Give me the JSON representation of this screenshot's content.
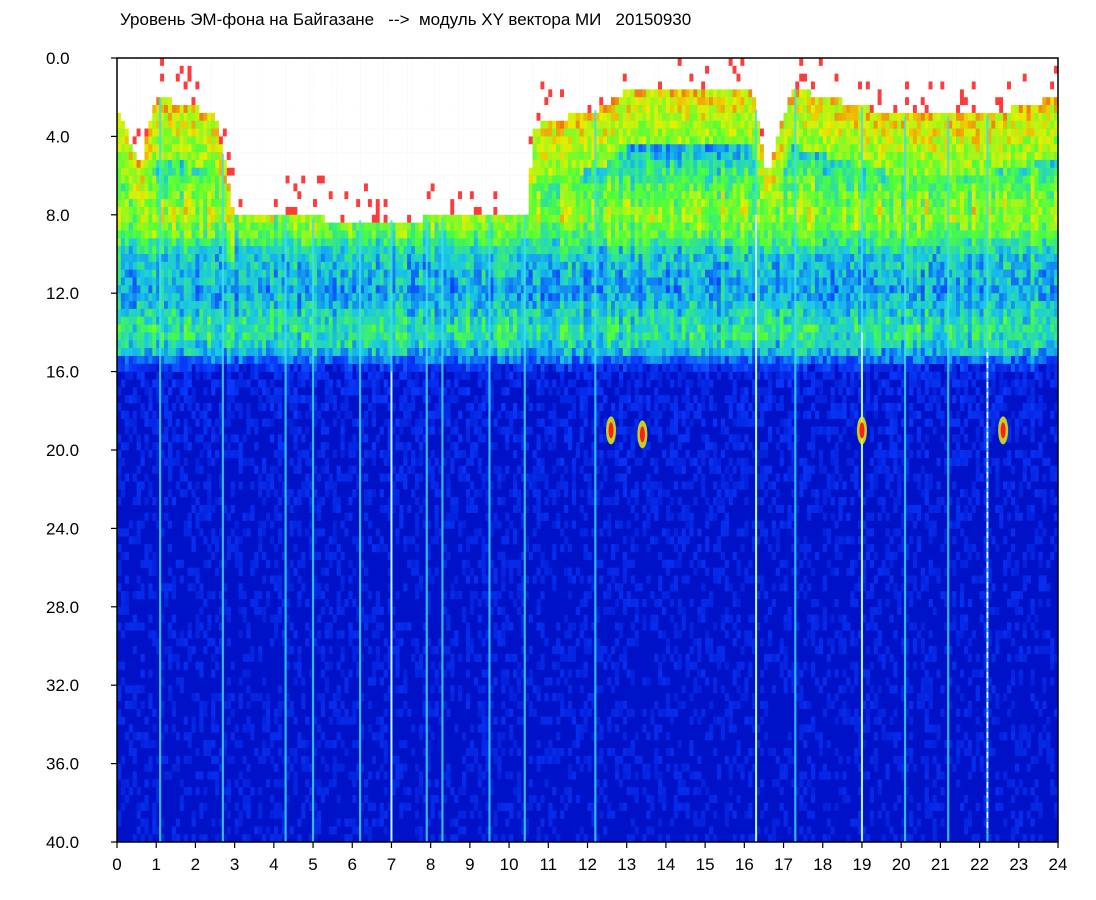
{
  "chart_data": {
    "type": "heatmap",
    "title": "Уровень ЭМ-фона на Байгазане   -->  модуль XY вектора МИ   20150930",
    "xlabel": "",
    "ylabel": "",
    "xlim": [
      0,
      24
    ],
    "ylim": [
      0,
      40
    ],
    "y_inverted": true,
    "x_ticks": [
      0,
      1,
      2,
      3,
      4,
      5,
      6,
      7,
      8,
      9,
      10,
      11,
      12,
      13,
      14,
      15,
      16,
      17,
      18,
      19,
      20,
      21,
      22,
      23,
      24
    ],
    "x_tick_labels": [
      "0",
      "1",
      "2",
      "3",
      "4",
      "5",
      "6",
      "7",
      "8",
      "9",
      "10",
      "11",
      "12",
      "13",
      "14",
      "15",
      "16",
      "17",
      "18",
      "19",
      "20",
      "21",
      "22",
      "23",
      "24"
    ],
    "y_ticks": [
      0,
      4,
      8,
      12,
      16,
      20,
      24,
      28,
      32,
      36,
      40
    ],
    "y_tick_labels": [
      "0.0",
      "4.0",
      "8.0",
      "12.0",
      "16.0",
      "20.0",
      "24.0",
      "28.0",
      "32.0",
      "36.0",
      "40.0"
    ],
    "grid": false,
    "legend": "none",
    "colormap": [
      "#0012c8",
      "#0a3cff",
      "#19c8e6",
      "#4cff3c",
      "#e6f000",
      "#ff1e1e",
      "#ffffff"
    ],
    "quiet_color": "#0012c8",
    "intensity_profile": {
      "y": [
        0,
        2,
        4,
        6,
        8,
        9,
        10,
        12,
        14,
        15,
        16,
        20,
        24,
        40
      ],
      "level": [
        0.02,
        0.1,
        0.3,
        0.55,
        0.7,
        0.6,
        0.42,
        0.35,
        0.52,
        0.38,
        0.08,
        0.05,
        0.03,
        0.02
      ],
      "upper_edge": [
        {
          "x": 0,
          "y": 2.5
        },
        {
          "x": 0.6,
          "y": 5.5
        },
        {
          "x": 1.0,
          "y": 2.0
        },
        {
          "x": 2.5,
          "y": 2.8
        },
        {
          "x": 3.0,
          "y": 8.0
        },
        {
          "x": 6.5,
          "y": 8.3
        },
        {
          "x": 10.5,
          "y": 8.0
        },
        {
          "x": 10.6,
          "y": 3.5
        },
        {
          "x": 12.5,
          "y": 2.5
        },
        {
          "x": 13.0,
          "y": 1.5
        },
        {
          "x": 16.2,
          "y": 1.5
        },
        {
          "x": 16.6,
          "y": 6.0
        },
        {
          "x": 17.2,
          "y": 1.5
        },
        {
          "x": 19.0,
          "y": 2.5
        },
        {
          "x": 20.0,
          "y": 3.0
        },
        {
          "x": 22.0,
          "y": 3.0
        },
        {
          "x": 24.0,
          "y": 2.0
        }
      ]
    },
    "bright_streaks_x": [
      1.1,
      2.7,
      4.3,
      5.0,
      6.2,
      7.0,
      7.9,
      8.3,
      9.5,
      10.4,
      12.2,
      16.3,
      17.3,
      19.0,
      20.1,
      21.2,
      22.2
    ],
    "hot_spots": [
      {
        "x": 12.6,
        "y": 19.0
      },
      {
        "x": 13.4,
        "y": 19.2
      },
      {
        "x": 19.0,
        "y": 19.0
      },
      {
        "x": 22.6,
        "y": 19.0
      }
    ]
  }
}
